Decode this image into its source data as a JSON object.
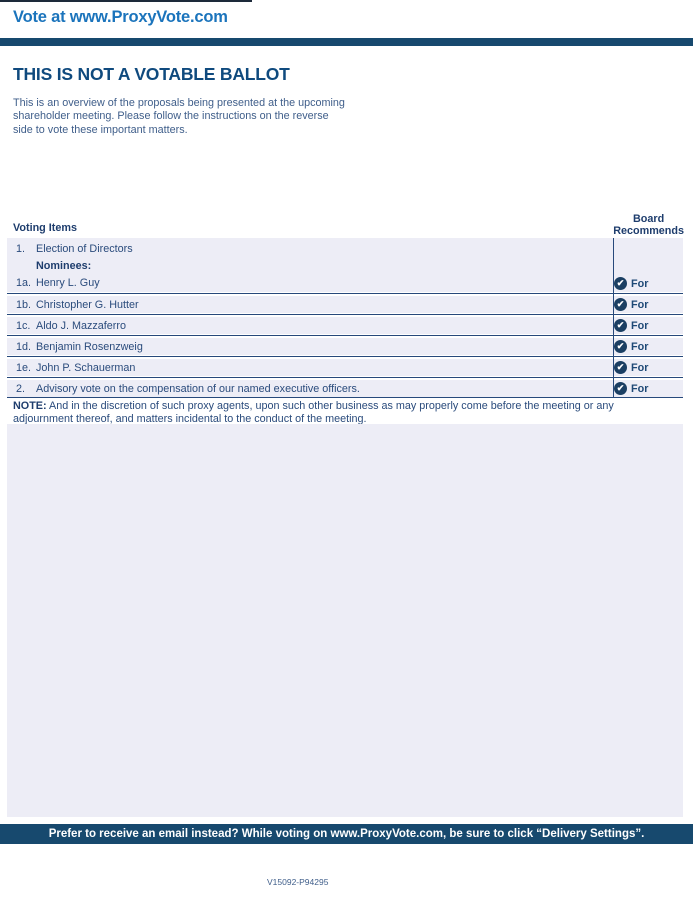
{
  "page": {
    "header_link": "Vote at www.ProxyVote.com",
    "title": "THIS IS NOT A VOTABLE BALLOT",
    "intro": "This is an overview of the proposals being presented at the upcoming shareholder meeting. Please follow the instructions on the reverse side to vote these important matters."
  },
  "voting": {
    "items_header": "Voting Items",
    "recommends_header": {
      "line1": "Board",
      "line2": "Recommends"
    },
    "item1": {
      "number": "1.",
      "label": "Election of Directors",
      "nominees_label": "Nominees:"
    },
    "nominees": [
      {
        "id": "1a.",
        "name": "Henry L. Guy",
        "recommend": "For"
      },
      {
        "id": "1b.",
        "name": "Christopher G. Hutter",
        "recommend": "For"
      },
      {
        "id": "1c.",
        "name": "Aldo J. Mazzaferro",
        "recommend": "For"
      },
      {
        "id": "1d.",
        "name": "Benjamin Rosenzweig",
        "recommend": "For"
      },
      {
        "id": "1e.",
        "name": "John P. Schauerman",
        "recommend": "For"
      }
    ],
    "item2": {
      "number": "2.",
      "label": "Advisory vote on the compensation of our named executive officers.",
      "recommend": "For"
    }
  },
  "note": {
    "label": "NOTE:",
    "text": "And in the discretion of such proxy agents, upon such other business as may properly come before the meeting or any adjournment thereof, and matters incidental to the conduct of the meeting."
  },
  "footer": {
    "email_banner": "Prefer to receive an email instead? While voting on www.ProxyVote.com, be sure to click “Delivery Settings”.",
    "doc_code": "V15092-P94295"
  },
  "icons": {
    "check": "✔"
  },
  "colors": {
    "link_blue": "#1b74bc",
    "navy_bar": "#17496e",
    "heading_navy": "#0f4a7e",
    "text_navy": "#2a4b7c",
    "row_background": "#ededf6",
    "separator_navy": "#27497b",
    "check_circle": "#1b3f63"
  }
}
